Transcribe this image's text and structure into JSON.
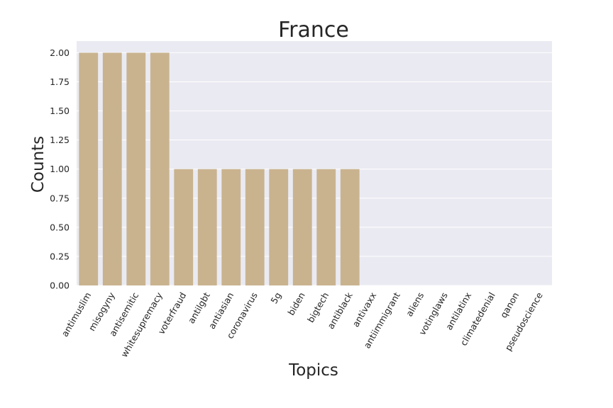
{
  "chart_data": {
    "type": "bar",
    "title": "France",
    "xlabel": "Topics",
    "ylabel": "Counts",
    "categories": [
      "antimuslim",
      "misogyny",
      "antisemitic",
      "whitesupremacy",
      "voterfraud",
      "antilgbt",
      "antiasian",
      "coronavirus",
      "5g",
      "biden",
      "bigtech",
      "antiblack",
      "antivaxx",
      "antiimmigrant",
      "aliens",
      "votinglaws",
      "antilatinx",
      "climatedenial",
      "qanon",
      "pseudoscience"
    ],
    "values": [
      2,
      2,
      2,
      2,
      1,
      1,
      1,
      1,
      1,
      1,
      1,
      1,
      0,
      0,
      0,
      0,
      0,
      0,
      0,
      0
    ],
    "ylim": [
      0,
      2.1
    ],
    "yticks": [
      "0.00",
      "0.25",
      "0.50",
      "0.75",
      "1.00",
      "1.25",
      "1.50",
      "1.75",
      "2.00"
    ],
    "grid": true,
    "bar_color": "#c9b38f",
    "background_color": "#eaeaf2"
  }
}
